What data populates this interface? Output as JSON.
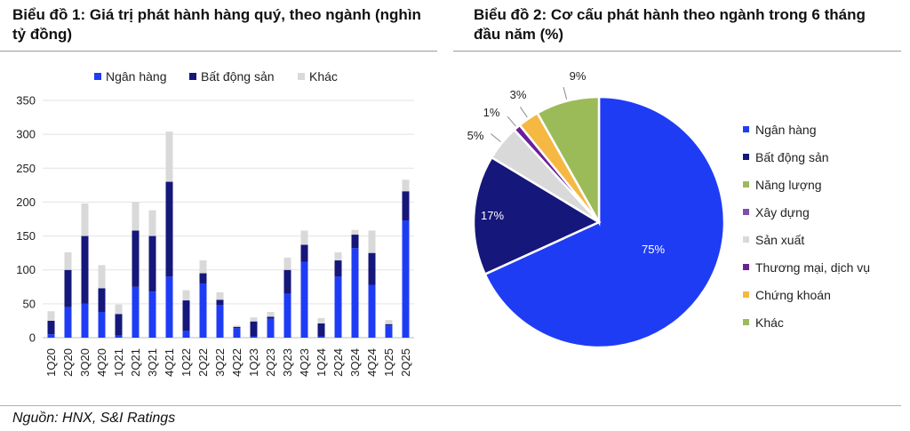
{
  "chart_data": [
    {
      "type": "bar",
      "stacked": true,
      "title": "Biểu đồ 1: Giá trị phát hành hàng quý, theo ngành (nghìn tỷ đồng)",
      "categories": [
        "1Q20",
        "2Q20",
        "3Q20",
        "4Q20",
        "1Q21",
        "2Q21",
        "3Q21",
        "4Q21",
        "1Q22",
        "2Q22",
        "3Q22",
        "4Q22",
        "1Q23",
        "2Q23",
        "3Q23",
        "4Q23",
        "1Q24",
        "2Q24",
        "3Q24",
        "4Q24",
        "1Q25",
        "2Q25"
      ],
      "series": [
        {
          "name": "Ngân hàng",
          "color": "#1f3cf5",
          "values": [
            5,
            45,
            50,
            38,
            3,
            75,
            68,
            90,
            10,
            80,
            48,
            14,
            2,
            28,
            65,
            112,
            2,
            90,
            132,
            78,
            18,
            173
          ]
        },
        {
          "name": "Bất động sản",
          "color": "#15177a",
          "values": [
            20,
            55,
            100,
            35,
            32,
            83,
            82,
            140,
            45,
            15,
            8,
            2,
            22,
            3,
            35,
            25,
            19,
            24,
            20,
            47,
            2,
            43
          ]
        },
        {
          "name": "Khác",
          "color": "#d9d9d9",
          "values": [
            14,
            26,
            48,
            34,
            14,
            42,
            38,
            74,
            15,
            19,
            11,
            2,
            6,
            7,
            18,
            21,
            8,
            12,
            7,
            33,
            6,
            17
          ]
        }
      ],
      "ylim": [
        0,
        350
      ],
      "yticks": [
        0,
        50,
        100,
        150,
        200,
        250,
        300,
        350
      ],
      "grid": true,
      "legend": "top"
    },
    {
      "type": "pie",
      "title": "Biểu đồ 2: Cơ cấu phát hành theo ngành trong 6 tháng đầu năm (%)",
      "slices": [
        {
          "name": "Ngân hàng",
          "value": 75,
          "label": "75%",
          "color": "#1f3cf5"
        },
        {
          "name": "Bất động sản",
          "value": 17,
          "label": "17%",
          "color": "#15177a"
        },
        {
          "name": "Năng lượng",
          "value": 0,
          "label": "",
          "color": "#9bbb59"
        },
        {
          "name": "Xây dựng",
          "value": 0,
          "label": "",
          "color": "#7f4fb0"
        },
        {
          "name": "Sản xuất",
          "value": 5,
          "label": "5%",
          "color": "#d9d9d9"
        },
        {
          "name": "Thương mại, dịch vụ",
          "value": 1,
          "label": "1%",
          "color": "#6a1f9a"
        },
        {
          "name": "Chứng khoán",
          "value": 3,
          "label": "3%",
          "color": "#f4b843"
        },
        {
          "name": "Khác",
          "value": 9,
          "label": "9%",
          "color": "#9bbb59"
        }
      ],
      "legend": "right"
    }
  ],
  "source": "Nguồn: HNX, S&I Ratings"
}
